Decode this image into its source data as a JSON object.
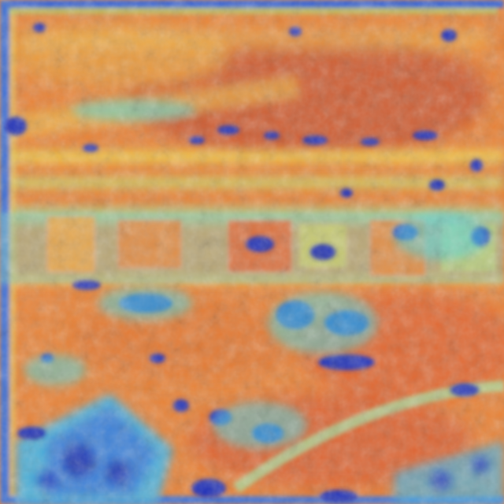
{
  "image": {
    "kind": "aerial photograph with heatmap overlay",
    "colormap": [
      "#1a1aa0",
      "#2b3fd0",
      "#3fa0e8",
      "#4fe0d8",
      "#a8e878",
      "#f0e050",
      "#f0a040",
      "#e86030",
      "#d84830"
    ],
    "dominant_color": "#e87a38"
  }
}
